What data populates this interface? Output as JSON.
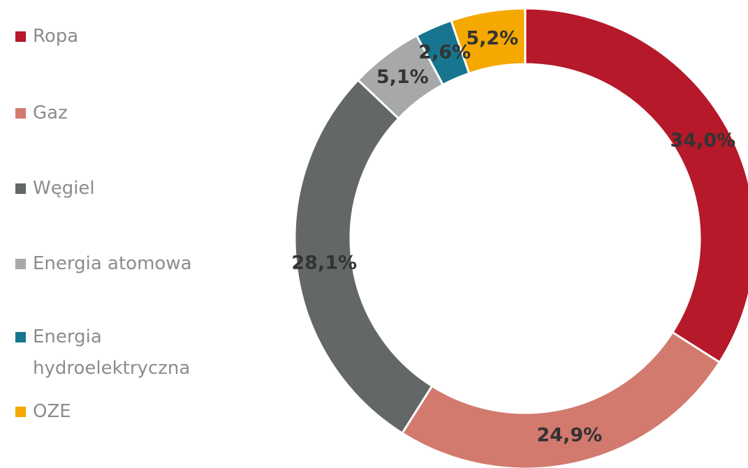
{
  "chart_data": {
    "type": "donut",
    "categories": [
      "Ropa",
      "Gaz",
      "Węgiel",
      "Energia atomowa",
      "Energia hydroelektryczna",
      "OZE"
    ],
    "values": [
      34.0,
      24.9,
      28.1,
      5.1,
      2.6,
      5.2
    ],
    "value_labels": [
      "34,0%",
      "24,9%",
      "28,1%",
      "5,1%",
      "2,6%",
      "5,2%"
    ],
    "colors": [
      "#b5192a",
      "#d27a6e",
      "#636767",
      "#a6a8a9",
      "#17758f",
      "#f5a800"
    ],
    "legend": "left"
  }
}
